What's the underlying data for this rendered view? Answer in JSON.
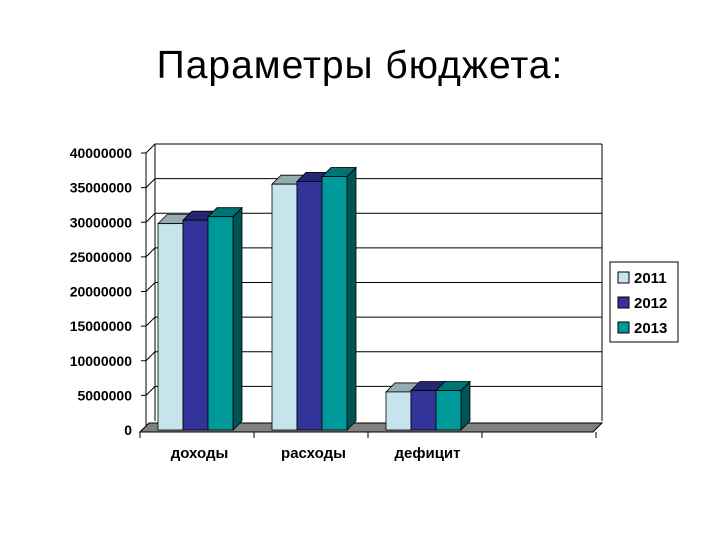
{
  "slide": {
    "title": "Параметры бюджета:"
  },
  "chart_data": {
    "type": "bar",
    "categories": [
      "доходы",
      "расходы",
      "дефицит"
    ],
    "series": [
      {
        "name": "2011",
        "values": [
          29800000,
          35500000,
          5500000
        ],
        "color": "#c5e4ec"
      },
      {
        "name": "2012",
        "values": [
          30300000,
          35900000,
          5700000
        ],
        "color": "#333399"
      },
      {
        "name": "2013",
        "values": [
          30800000,
          36600000,
          5700000
        ],
        "color": "#009999"
      }
    ],
    "ylim": [
      0,
      40000000
    ],
    "yticks": [
      "0",
      "5000000",
      "10000000",
      "15000000",
      "20000000",
      "25000000",
      "30000000",
      "35000000",
      "40000000"
    ],
    "grid": true,
    "legend_position": "right",
    "style": "3d-clustered"
  }
}
